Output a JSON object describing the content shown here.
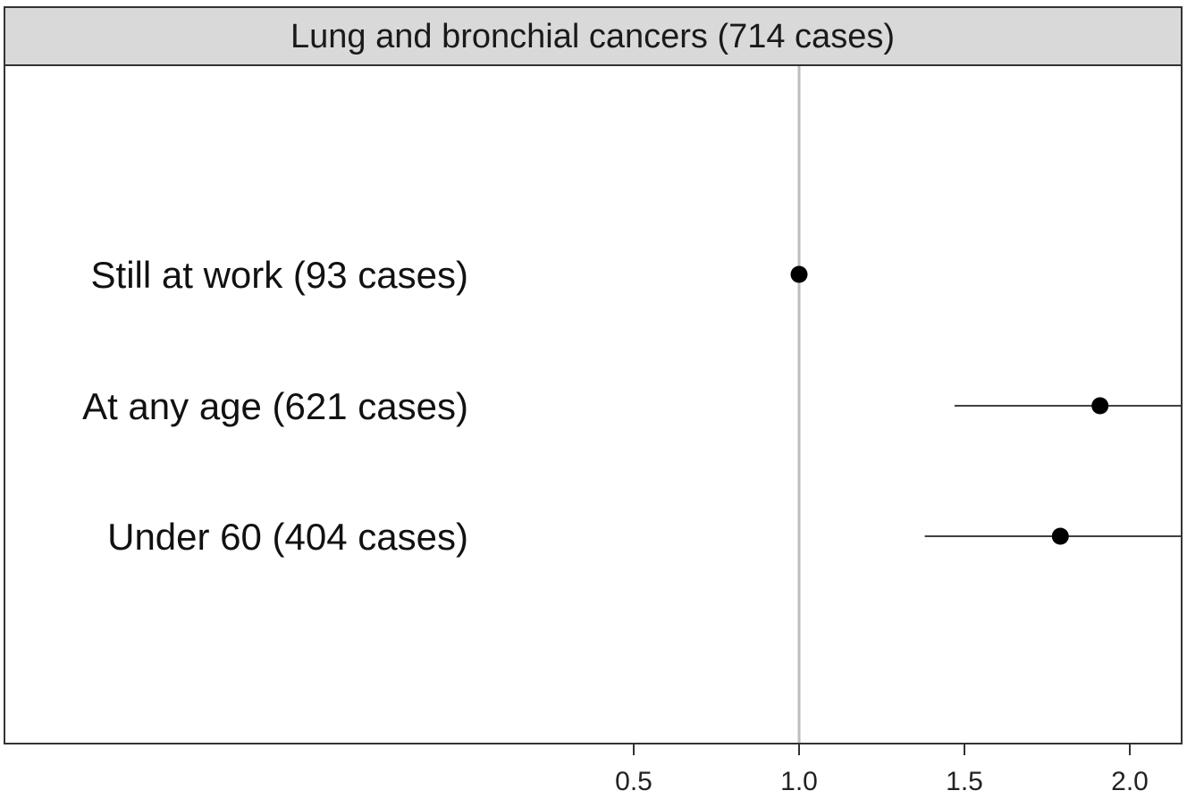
{
  "chart_data": {
    "type": "scatter",
    "title": "Lung and bronchial cancers (714 cases)",
    "xlabel": "",
    "ylabel": "",
    "xlim": [
      0.0,
      2.16
    ],
    "x_ticks": [
      "0.5",
      "1.0",
      "1.5",
      "2.0"
    ],
    "reference_line": 1.0,
    "grid": false,
    "categories": [
      "Still at work (93 cases)",
      "At any age (621 cases)",
      "Under 60 (404 cases)"
    ],
    "points": [
      {
        "label": "Still at work (93 cases)",
        "estimate": 1.0,
        "ci_low": null,
        "ci_high": null
      },
      {
        "label": "At any age (621 cases)",
        "estimate": 1.91,
        "ci_low": 1.47,
        "ci_high": 2.16
      },
      {
        "label": "Under 60 (404 cases)",
        "estimate": 1.79,
        "ci_low": 1.38,
        "ci_high": 2.16
      }
    ],
    "colors": {
      "point": "#000000",
      "ref_line": "#bdbdbd",
      "strip_bg": "#d9d9d9",
      "frame": "#333333"
    }
  }
}
